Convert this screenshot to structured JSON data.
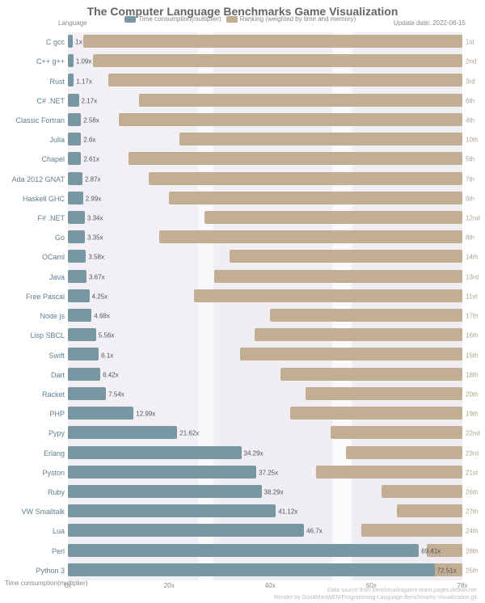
{
  "title": "The Computer Language Benchmarks Game Visualization",
  "update_date": "Update date: 2022-06-15",
  "y_axis_label": "Language",
  "x_axis_label": "Time consumption(multiplier)",
  "legend": {
    "time": "Time consumption(multiplier)",
    "rank": "Ranking (weighted by time and memory)"
  },
  "colors": {
    "time_bar": "#7798a3",
    "rank_bar": "#c1ae93",
    "title_text": "#656565",
    "lang_text": "#5f7f8f",
    "rank_text": "#b0a48f",
    "footer_text": "#bbbbbb"
  },
  "x_axis": {
    "min": 0,
    "max": 78,
    "ticks": [
      {
        "pos": 0,
        "label": "0x"
      },
      {
        "pos": 20,
        "label": "20x"
      },
      {
        "pos": 40,
        "label": "40x"
      },
      {
        "pos": 60,
        "label": "60x"
      },
      {
        "pos": 78,
        "label": "78x"
      }
    ]
  },
  "rows": [
    {
      "lang": "C gcc",
      "time": 1,
      "time_label": "1x",
      "rank_start": 3,
      "rank_end": 78,
      "rank": "1st"
    },
    {
      "lang": "C++ g++",
      "time": 1.09,
      "time_label": "1.09x",
      "rank_start": 5,
      "rank_end": 78,
      "rank": "2nd"
    },
    {
      "lang": "Rust",
      "time": 1.17,
      "time_label": "1.17x",
      "rank_start": 8,
      "rank_end": 78,
      "rank": "3rd"
    },
    {
      "lang": "C# .NET",
      "time": 2.17,
      "time_label": "2.17x",
      "rank_start": 14,
      "rank_end": 78,
      "rank": "6th"
    },
    {
      "lang": "Classic Fortran",
      "time": 2.58,
      "time_label": "2.58x",
      "rank_start": 10,
      "rank_end": 78,
      "rank": "4th"
    },
    {
      "lang": "Julia",
      "time": 2.6,
      "time_label": "2.6x",
      "rank_start": 22,
      "rank_end": 78,
      "rank": "10th"
    },
    {
      "lang": "Chapel",
      "time": 2.61,
      "time_label": "2.61x",
      "rank_start": 12,
      "rank_end": 78,
      "rank": "5th"
    },
    {
      "lang": "Ada 2012 GNAT",
      "time": 2.87,
      "time_label": "2.87x",
      "rank_start": 16,
      "rank_end": 78,
      "rank": "7th"
    },
    {
      "lang": "Haskell GHC",
      "time": 2.99,
      "time_label": "2.99x",
      "rank_start": 20,
      "rank_end": 78,
      "rank": "9th"
    },
    {
      "lang": "F# .NET",
      "time": 3.34,
      "time_label": "3.34x",
      "rank_start": 27,
      "rank_end": 78,
      "rank": "12nd"
    },
    {
      "lang": "Go",
      "time": 3.35,
      "time_label": "3.35x",
      "rank_start": 18,
      "rank_end": 78,
      "rank": "8th"
    },
    {
      "lang": "OCaml",
      "time": 3.58,
      "time_label": "3.58x",
      "rank_start": 32,
      "rank_end": 78,
      "rank": "14th"
    },
    {
      "lang": "Java",
      "time": 3.67,
      "time_label": "3.67x",
      "rank_start": 29,
      "rank_end": 78,
      "rank": "13rd"
    },
    {
      "lang": "Free Pascal",
      "time": 4.25,
      "time_label": "4.25x",
      "rank_start": 25,
      "rank_end": 78,
      "rank": "11st"
    },
    {
      "lang": "Node js",
      "time": 4.68,
      "time_label": "4.68x",
      "rank_start": 40,
      "rank_end": 78,
      "rank": "17th"
    },
    {
      "lang": "Lisp SBCL",
      "time": 5.56,
      "time_label": "5.56x",
      "rank_start": 37,
      "rank_end": 78,
      "rank": "16th"
    },
    {
      "lang": "Swift",
      "time": 6.1,
      "time_label": "6.1x",
      "rank_start": 34,
      "rank_end": 78,
      "rank": "15th"
    },
    {
      "lang": "Dart",
      "time": 6.42,
      "time_label": "6.42x",
      "rank_start": 42,
      "rank_end": 78,
      "rank": "18th"
    },
    {
      "lang": "Racket",
      "time": 7.54,
      "time_label": "7.54x",
      "rank_start": 47,
      "rank_end": 78,
      "rank": "20th"
    },
    {
      "lang": "PHP",
      "time": 12.99,
      "time_label": "12.99x",
      "rank_start": 44,
      "rank_end": 78,
      "rank": "19th"
    },
    {
      "lang": "Pypy",
      "time": 21.62,
      "time_label": "21.62x",
      "rank_start": 52,
      "rank_end": 78,
      "rank": "22nd"
    },
    {
      "lang": "Erlang",
      "time": 34.29,
      "time_label": "34.29x",
      "rank_start": 55,
      "rank_end": 78,
      "rank": "23rd"
    },
    {
      "lang": "Pyston",
      "time": 37.25,
      "time_label": "37.25x",
      "rank_start": 49,
      "rank_end": 78,
      "rank": "21st"
    },
    {
      "lang": "Ruby",
      "time": 38.29,
      "time_label": "38.29x",
      "rank_start": 62,
      "rank_end": 78,
      "rank": "26th"
    },
    {
      "lang": "VW Smalltalk",
      "time": 41.12,
      "time_label": "41.12x",
      "rank_start": 65,
      "rank_end": 78,
      "rank": "27th"
    },
    {
      "lang": "Lua",
      "time": 46.7,
      "time_label": "46.7x",
      "rank_start": 58,
      "rank_end": 78,
      "rank": "24th"
    },
    {
      "lang": "Perl",
      "time": 69.41,
      "time_label": "69.41x",
      "rank_start": 71,
      "rank_end": 78,
      "rank": "28th"
    },
    {
      "lang": "Python 3",
      "time": 72.51,
      "time_label": "72.51x",
      "rank_start": 60,
      "rank_end": 78,
      "rank": "25th"
    }
  ],
  "footer": {
    "line1": "Data source from benchmarksgame-team.pages.debian.net",
    "line2": "Render by GoodManWEN/Programming-Language-Benchmarks-Visualization.git"
  }
}
